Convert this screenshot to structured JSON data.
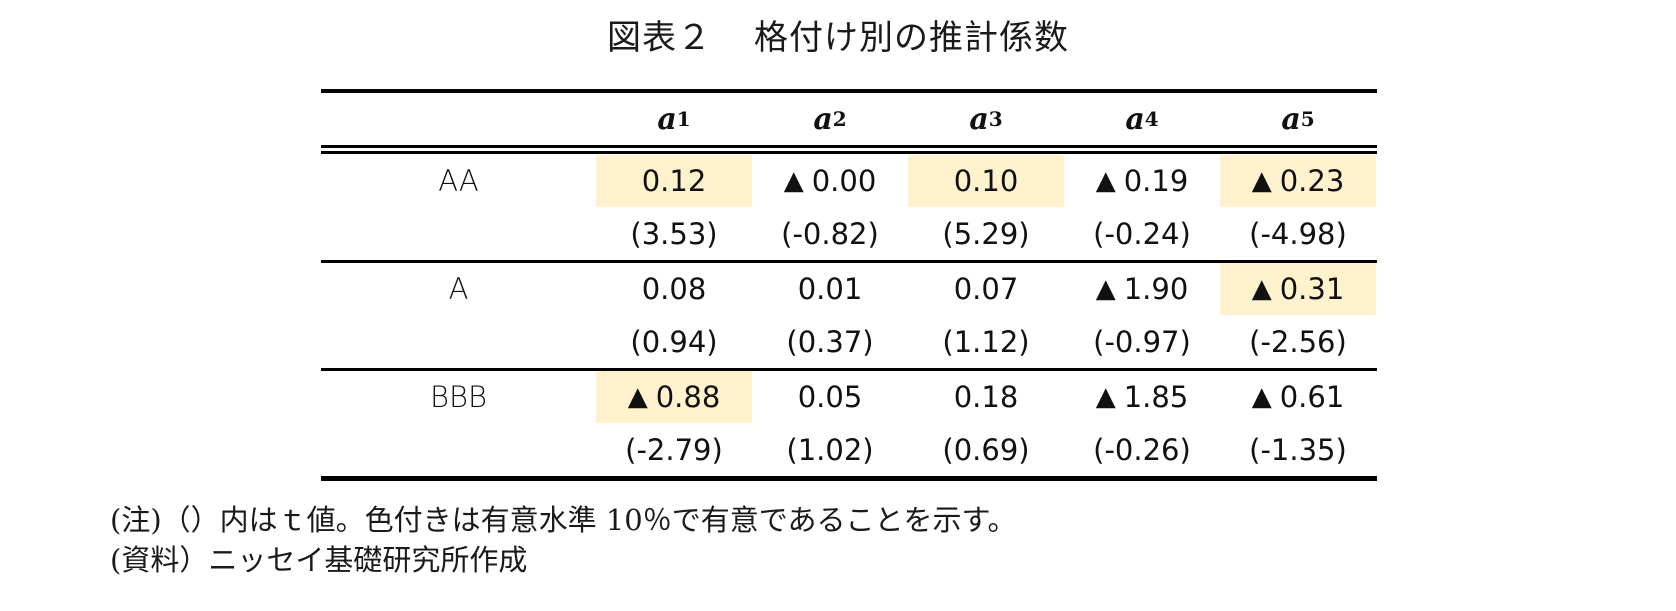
{
  "title": {
    "prefix": "図表２",
    "text": "格付け別の推計係数"
  },
  "table": {
    "columns": [
      {
        "base": "a",
        "sub": "1"
      },
      {
        "base": "a",
        "sub": "2"
      },
      {
        "base": "a",
        "sub": "3"
      },
      {
        "base": "a",
        "sub": "4"
      },
      {
        "base": "a",
        "sub": "5"
      }
    ],
    "rows": [
      {
        "label": "AA",
        "coefficients": [
          {
            "value": "0.12",
            "negative": false,
            "significant": true
          },
          {
            "value": "0.00",
            "negative": true,
            "significant": false
          },
          {
            "value": "0.10",
            "negative": false,
            "significant": true
          },
          {
            "value": "0.19",
            "negative": true,
            "significant": false
          },
          {
            "value": "0.23",
            "negative": true,
            "significant": true
          }
        ],
        "t_values": [
          "(3.53)",
          "(-0.82)",
          "(5.29)",
          "(-0.24)",
          "(-4.98)"
        ]
      },
      {
        "label": "A",
        "coefficients": [
          {
            "value": "0.08",
            "negative": false,
            "significant": false
          },
          {
            "value": "0.01",
            "negative": false,
            "significant": false
          },
          {
            "value": "0.07",
            "negative": false,
            "significant": false
          },
          {
            "value": "1.90",
            "negative": true,
            "significant": false
          },
          {
            "value": "0.31",
            "negative": true,
            "significant": true
          }
        ],
        "t_values": [
          "(0.94)",
          "(0.37)",
          "(1.12)",
          "(-0.97)",
          "(-2.56)"
        ]
      },
      {
        "label": "BBB",
        "coefficients": [
          {
            "value": "0.88",
            "negative": true,
            "significant": true
          },
          {
            "value": "0.05",
            "negative": false,
            "significant": false
          },
          {
            "value": "0.18",
            "negative": false,
            "significant": false
          },
          {
            "value": "1.85",
            "negative": true,
            "significant": false
          },
          {
            "value": "0.61",
            "negative": true,
            "significant": false
          }
        ],
        "t_values": [
          "(-2.79)",
          "(1.02)",
          "(0.69)",
          "(-0.26)",
          "(-1.35)"
        ]
      }
    ],
    "negative_marker": "▲",
    "highlight_color": "#FFF2CC"
  },
  "notes": {
    "note": "(注)（）内はｔ値。色付きは有意水準 10％で有意であることを示す。",
    "source": "(資料）ニッセイ基礎研究所作成"
  }
}
